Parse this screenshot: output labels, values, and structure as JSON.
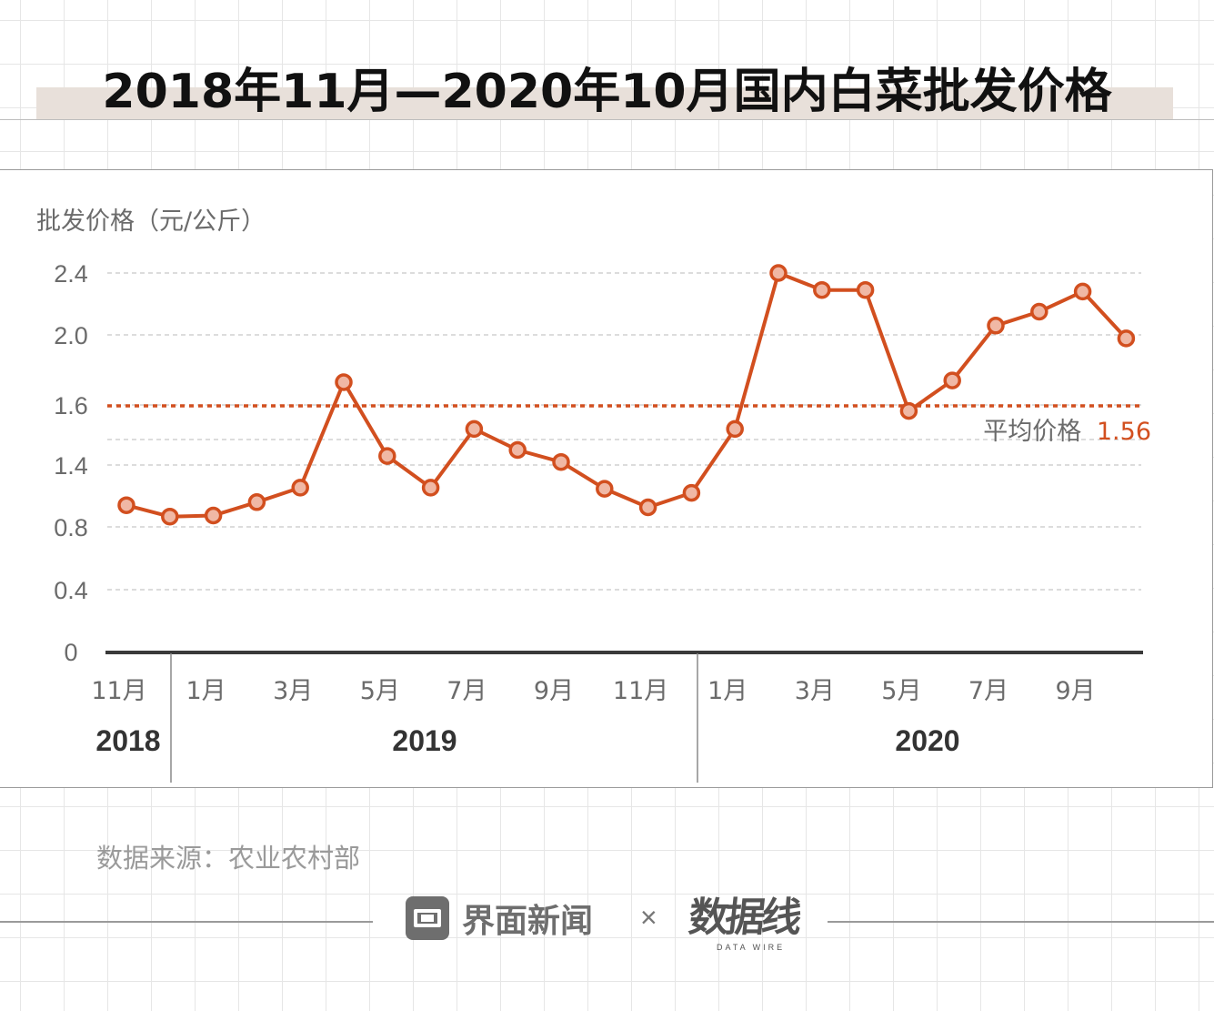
{
  "title": "2018年11月—2020年10月国内白菜批发价格",
  "source": "数据来源：农业农村部",
  "branding": {
    "jiemian": "界面新闻",
    "times": "×",
    "datawire": "数据线",
    "datawire_en": "DATA WIRE"
  },
  "colors": {
    "accent": "#d24f1f",
    "marker_fill": "#f0b8a5",
    "axis_text": "#6b6b6b",
    "year_text": "#333333"
  },
  "chart_data": {
    "type": "line",
    "ylabel": "批发价格（元/公斤）",
    "ylim": [
      0,
      2.4
    ],
    "yticks": [
      "2.4",
      "2.0",
      "1.6",
      "1.4",
      "0.8",
      "0.4",
      "0"
    ],
    "grid": true,
    "categories": [
      "2018-11",
      "2018-12",
      "2019-01",
      "2019-02",
      "2019-03",
      "2019-04",
      "2019-05",
      "2019-06",
      "2019-07",
      "2019-08",
      "2019-09",
      "2019-10",
      "2019-11",
      "2019-12",
      "2020-01",
      "2020-02",
      "2020-03",
      "2020-04",
      "2020-05",
      "2020-06",
      "2020-07",
      "2020-08",
      "2020-09",
      "2020-10"
    ],
    "xtick_labels": [
      {
        "index": 0,
        "label": "11月"
      },
      {
        "index": 2,
        "label": "1月"
      },
      {
        "index": 4,
        "label": "3月"
      },
      {
        "index": 6,
        "label": "5月"
      },
      {
        "index": 8,
        "label": "7月"
      },
      {
        "index": 10,
        "label": "9月"
      },
      {
        "index": 12,
        "label": "11月"
      },
      {
        "index": 14,
        "label": "1月"
      },
      {
        "index": 16,
        "label": "3月"
      },
      {
        "index": 18,
        "label": "5月"
      },
      {
        "index": 20,
        "label": "7月"
      },
      {
        "index": 22,
        "label": "9月"
      }
    ],
    "years": [
      {
        "label": "2018",
        "start": 0,
        "end": 1
      },
      {
        "label": "2019",
        "start": 2,
        "end": 13
      },
      {
        "label": "2020",
        "start": 14,
        "end": 23
      }
    ],
    "series": [
      {
        "values": [
          1.01,
          0.9,
          0.91,
          1.04,
          1.18,
          1.73,
          1.43,
          1.18,
          1.52,
          1.45,
          1.41,
          1.17,
          0.99,
          1.13,
          1.52,
          2.4,
          2.29,
          2.29,
          1.58,
          1.74,
          2.06,
          2.15,
          2.28,
          1.98
        ]
      }
    ],
    "average": {
      "label": "平均价格",
      "value": 1.56,
      "value_label": "1.56"
    }
  }
}
